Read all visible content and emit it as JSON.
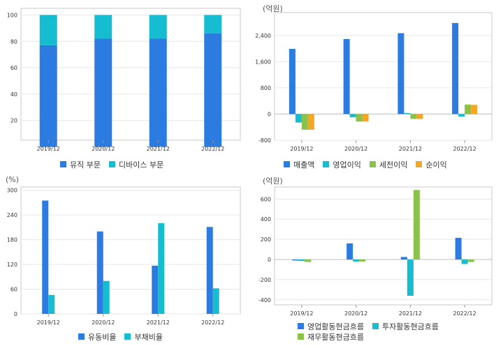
{
  "chart_data": [
    {
      "id": "p1",
      "type": "bar",
      "stacked": true,
      "unit_label": "",
      "categories": [
        "2019/12",
        "2020/12",
        "2021/12",
        "2022/12"
      ],
      "ylim": [
        5,
        105
      ],
      "yticks": [
        20,
        40,
        60,
        80,
        100
      ],
      "grid": true,
      "legend_position": "bottom",
      "series": [
        {
          "name": "뮤직 부문",
          "color": "#2b7be0",
          "values": [
            77,
            82,
            82,
            86
          ]
        },
        {
          "name": "디바이스 부문",
          "color": "#16bdd0",
          "values": [
            23,
            18,
            18,
            14
          ]
        }
      ]
    },
    {
      "id": "p2",
      "type": "bar",
      "unit_label": "(억원)",
      "categories": [
        "2019/12",
        "2020/12",
        "2021/12",
        "2022/12"
      ],
      "ylim": [
        -800,
        3100
      ],
      "yticks": [
        -800,
        0,
        800,
        1600,
        2400
      ],
      "grid": true,
      "legend_position": "bottom",
      "series": [
        {
          "name": "매출액",
          "color": "#2b7be0",
          "values": [
            1990,
            2290,
            2470,
            2780
          ]
        },
        {
          "name": "영업이익",
          "color": "#16bdd0",
          "values": [
            -260,
            -100,
            30,
            -80
          ]
        },
        {
          "name": "세전이익",
          "color": "#8bc34a",
          "values": [
            -480,
            -230,
            -150,
            290
          ]
        },
        {
          "name": "순이익",
          "color": "#f5a623",
          "values": [
            -480,
            -230,
            -150,
            280
          ]
        }
      ]
    },
    {
      "id": "p3",
      "type": "bar",
      "unit_label": "(%)",
      "categories": [
        "2019/12",
        "2020/12",
        "2021/12",
        "2022/12"
      ],
      "ylim": [
        0,
        308
      ],
      "yticks": [
        0,
        60,
        120,
        180,
        240,
        300
      ],
      "grid": true,
      "legend_position": "bottom",
      "series": [
        {
          "name": "유동비율",
          "color": "#2b7be0",
          "values": [
            275,
            200,
            117,
            211
          ]
        },
        {
          "name": "부채비율",
          "color": "#16bdd0",
          "values": [
            46,
            80,
            220,
            62
          ]
        }
      ]
    },
    {
      "id": "p4",
      "type": "bar",
      "unit_label": "(억원)",
      "categories": [
        "2019/12",
        "2020/12",
        "2021/12",
        "2022/12"
      ],
      "ylim": [
        -450,
        720
      ],
      "yticks": [
        -400,
        -200,
        0,
        200,
        400,
        600
      ],
      "grid": true,
      "legend_position": "bottom",
      "series": [
        {
          "name": "영업활동현금흐름",
          "color": "#2b7be0",
          "values": [
            -10,
            160,
            25,
            215
          ]
        },
        {
          "name": "투자활동현금흐름",
          "color": "#16bdd0",
          "values": [
            -15,
            -20,
            -360,
            -45
          ]
        },
        {
          "name": "재무활동현금흐름",
          "color": "#8bc34a",
          "values": [
            -25,
            -20,
            690,
            -25
          ]
        }
      ]
    }
  ]
}
